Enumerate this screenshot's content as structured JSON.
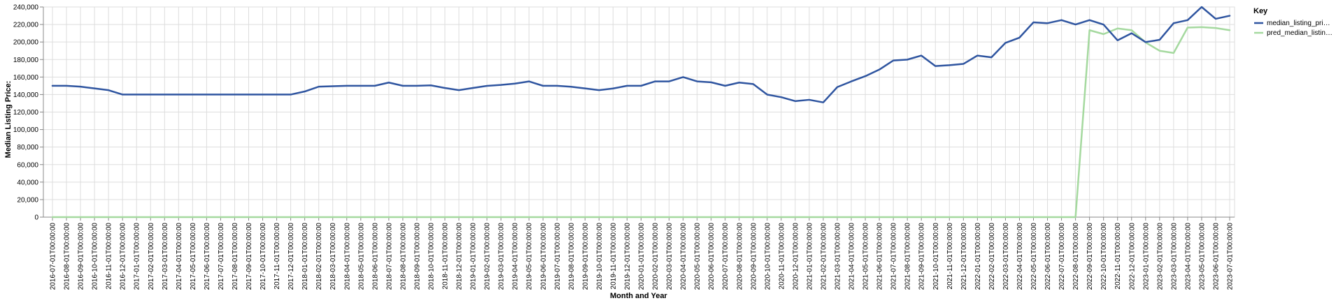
{
  "chart_data": {
    "type": "line",
    "xlabel": "Month and Year",
    "ylabel": "Median Listing Price:",
    "ylim": [
      0,
      240000
    ],
    "yticks": [
      0,
      20000,
      40000,
      60000,
      80000,
      100000,
      120000,
      140000,
      160000,
      180000,
      200000,
      220000,
      240000
    ],
    "ytick_labels": [
      "0",
      "20,000",
      "40,000",
      "60,000",
      "80,000",
      "100,000",
      "120,000",
      "140,000",
      "160,000",
      "180,000",
      "200,000",
      "220,000",
      "240,000"
    ],
    "grid": true,
    "legend": {
      "title": "Key",
      "position": "right"
    },
    "x": [
      "2016-07-01T00:00:00",
      "2016-08-01T00:00:00",
      "2016-09-01T00:00:00",
      "2016-10-01T00:00:00",
      "2016-11-01T00:00:00",
      "2016-12-01T00:00:00",
      "2017-01-01T00:00:00",
      "2017-02-01T00:00:00",
      "2017-03-01T00:00:00",
      "2017-04-01T00:00:00",
      "2017-05-01T00:00:00",
      "2017-06-01T00:00:00",
      "2017-07-01T00:00:00",
      "2017-08-01T00:00:00",
      "2017-09-01T00:00:00",
      "2017-10-01T00:00:00",
      "2017-11-01T00:00:00",
      "2017-12-01T00:00:00",
      "2018-01-01T00:00:00",
      "2018-02-01T00:00:00",
      "2018-03-01T00:00:00",
      "2018-04-01T00:00:00",
      "2018-05-01T00:00:00",
      "2018-06-01T00:00:00",
      "2018-07-01T00:00:00",
      "2018-08-01T00:00:00",
      "2018-09-01T00:00:00",
      "2018-10-01T00:00:00",
      "2018-11-01T00:00:00",
      "2018-12-01T00:00:00",
      "2019-01-01T00:00:00",
      "2019-02-01T00:00:00",
      "2019-03-01T00:00:00",
      "2019-04-01T00:00:00",
      "2019-05-01T00:00:00",
      "2019-06-01T00:00:00",
      "2019-07-01T00:00:00",
      "2019-08-01T00:00:00",
      "2019-09-01T00:00:00",
      "2019-10-01T00:00:00",
      "2019-11-01T00:00:00",
      "2019-12-01T00:00:00",
      "2020-01-01T00:00:00",
      "2020-02-01T00:00:00",
      "2020-03-01T00:00:00",
      "2020-04-01T00:00:00",
      "2020-05-01T00:00:00",
      "2020-06-01T00:00:00",
      "2020-07-01T00:00:00",
      "2020-08-01T00:00:00",
      "2020-09-01T00:00:00",
      "2020-10-01T00:00:00",
      "2020-11-01T00:00:00",
      "2020-12-01T00:00:00",
      "2021-01-01T00:00:00",
      "2021-02-01T00:00:00",
      "2021-03-01T00:00:00",
      "2021-04-01T00:00:00",
      "2021-05-01T00:00:00",
      "2021-06-01T00:00:00",
      "2021-07-01T00:00:00",
      "2021-08-01T00:00:00",
      "2021-09-01T00:00:00",
      "2021-10-01T00:00:00",
      "2021-11-01T00:00:00",
      "2021-12-01T00:00:00",
      "2022-01-01T00:00:00",
      "2022-02-01T00:00:00",
      "2022-03-01T00:00:00",
      "2022-04-01T00:00:00",
      "2022-05-01T00:00:00",
      "2022-06-01T00:00:00",
      "2022-07-01T00:00:00",
      "2022-08-01T00:00:00",
      "2022-09-01T00:00:00",
      "2022-10-01T00:00:00",
      "2022-11-01T00:00:00",
      "2022-12-01T00:00:00",
      "2023-01-01T00:00:00",
      "2023-02-01T00:00:00",
      "2023-03-01T00:00:00",
      "2023-04-01T00:00:00",
      "2023-05-01T00:00:00",
      "2023-06-01T00:00:00",
      "2023-07-01T00:00:00"
    ],
    "series": [
      {
        "name": "median_listing_pri…",
        "color": "#2f55a0",
        "values": [
          150000,
          150000,
          149000,
          147000,
          145000,
          140000,
          140000,
          140000,
          140000,
          140000,
          140000,
          140000,
          140000,
          140000,
          140000,
          140000,
          140000,
          140000,
          143500,
          149000,
          149500,
          150000,
          150000,
          150000,
          153700,
          150000,
          150000,
          150500,
          147500,
          145000,
          147500,
          149900,
          151000,
          152500,
          155000,
          150000,
          150000,
          148900,
          147000,
          145000,
          146900,
          150000,
          150000,
          155000,
          155000,
          159900,
          155000,
          154000,
          150000,
          153700,
          152000,
          139900,
          137000,
          132500,
          134000,
          131000,
          148500,
          155000,
          161000,
          168500,
          178900,
          179900,
          184500,
          172500,
          173500,
          175000,
          184500,
          182500,
          199000,
          205000,
          222500,
          221500,
          225000,
          220000,
          225000,
          219900,
          201900,
          210000,
          199900,
          202500,
          221500,
          225000,
          240000,
          226500,
          230000
        ]
      },
      {
        "name": "pred_median_listin…",
        "color": "#a5d99f",
        "values": [
          0,
          0,
          0,
          0,
          0,
          0,
          0,
          0,
          0,
          0,
          0,
          0,
          0,
          0,
          0,
          0,
          0,
          0,
          0,
          0,
          0,
          0,
          0,
          0,
          0,
          0,
          0,
          0,
          0,
          0,
          0,
          0,
          0,
          0,
          0,
          0,
          0,
          0,
          0,
          0,
          0,
          0,
          0,
          0,
          0,
          0,
          0,
          0,
          0,
          0,
          0,
          0,
          0,
          0,
          0,
          0,
          0,
          0,
          0,
          0,
          0,
          0,
          0,
          0,
          0,
          0,
          0,
          0,
          0,
          0,
          0,
          0,
          0,
          0,
          213500,
          209000,
          215500,
          213500,
          199500,
          190000,
          187500,
          216500,
          217000,
          216000,
          213500
        ]
      }
    ]
  }
}
